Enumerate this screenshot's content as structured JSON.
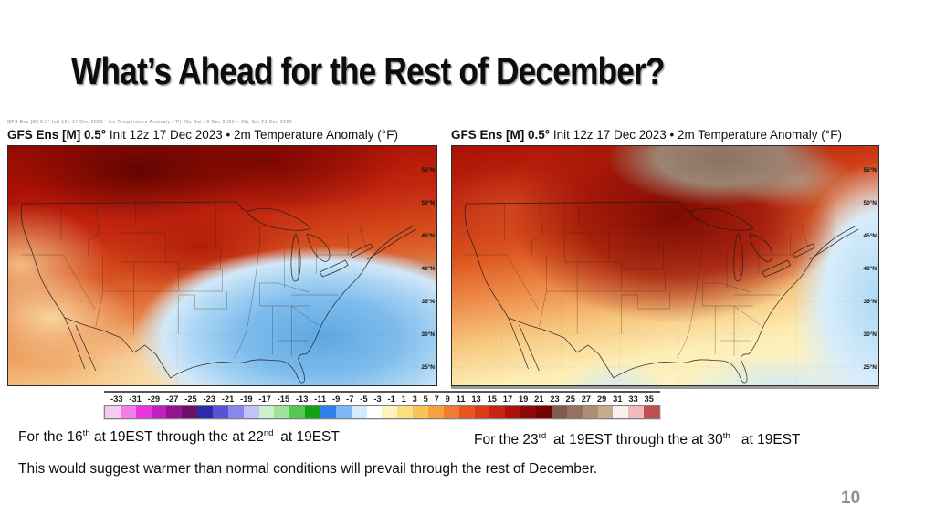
{
  "slide": {
    "title": "What’s Ahead for the Rest of December?",
    "conclusion": "This would suggest warmer than normal conditions will prevail through the rest of December.",
    "page_number": "10"
  },
  "maps": {
    "header_bold": "GFS Ens [M] 0.5°",
    "header_rest": " Init 12z 17 Dec 2023 • 2m Temperature Anomaly (°F)",
    "micro_caption": "GFS Ens [M] 0.5° Init 12z 17 Dec 2023 · 2m Temperature Anomaly (°F)          00z Sat 16 Dec 2023 – 00z Sat 23 Dec 2023",
    "lat_labels": [
      "55°N",
      "50°N",
      "45°N",
      "40°N",
      "35°N",
      "30°N",
      "25°N"
    ],
    "left_caption": {
      "t1": "For the 16",
      "s1": "th",
      "t2": " at 19EST through the at 22",
      "s2": "nd",
      "t3": " at 19EST"
    },
    "right_caption": {
      "t1": "For the 23",
      "s1": "rd",
      "t2": " at 19EST through the at 30",
      "s2": "th",
      "t3": "  at 19EST"
    }
  },
  "colorbar": {
    "tick_labels": [
      "-33",
      "-31",
      "-29",
      "-27",
      "-25",
      "-23",
      "-21",
      "-19",
      "-17",
      "-15",
      "-13",
      "-11",
      "-9",
      "-7",
      "-5",
      "-3",
      "-1",
      "1",
      "3",
      "5",
      "7",
      "9",
      "11",
      "13",
      "15",
      "17",
      "19",
      "21",
      "23",
      "25",
      "27",
      "29",
      "31",
      "33",
      "35"
    ],
    "cell_colors": [
      "#f9c9f1",
      "#f37eea",
      "#e935e0",
      "#c11fbb",
      "#93148f",
      "#6b0f68",
      "#2b2ba9",
      "#5555d4",
      "#8888ec",
      "#c3c3f8",
      "#cdefc9",
      "#9fe39b",
      "#58c653",
      "#12a312",
      "#2e7fe8",
      "#7cb8f4",
      "#d5eafa",
      "#ffffff",
      "#fdf3bd",
      "#fbe17e",
      "#f9c35a",
      "#f7a03f",
      "#f07b33",
      "#e75722",
      "#d93a18",
      "#c62414",
      "#ab120c",
      "#8f0808",
      "#700202",
      "#7e5a50",
      "#96715f",
      "#ad8d74",
      "#c6ab8d",
      "#faeeee",
      "#f2b9bd",
      "#c0504d"
    ]
  },
  "palette": {
    "warm_extreme": "#700202",
    "warm_strong": "#c62414",
    "warm_mild": "#f7c77e",
    "cool_mild": "#7ebcec",
    "ocean_cool": "#d8edfa",
    "brown_plus": "#9c8371"
  }
}
